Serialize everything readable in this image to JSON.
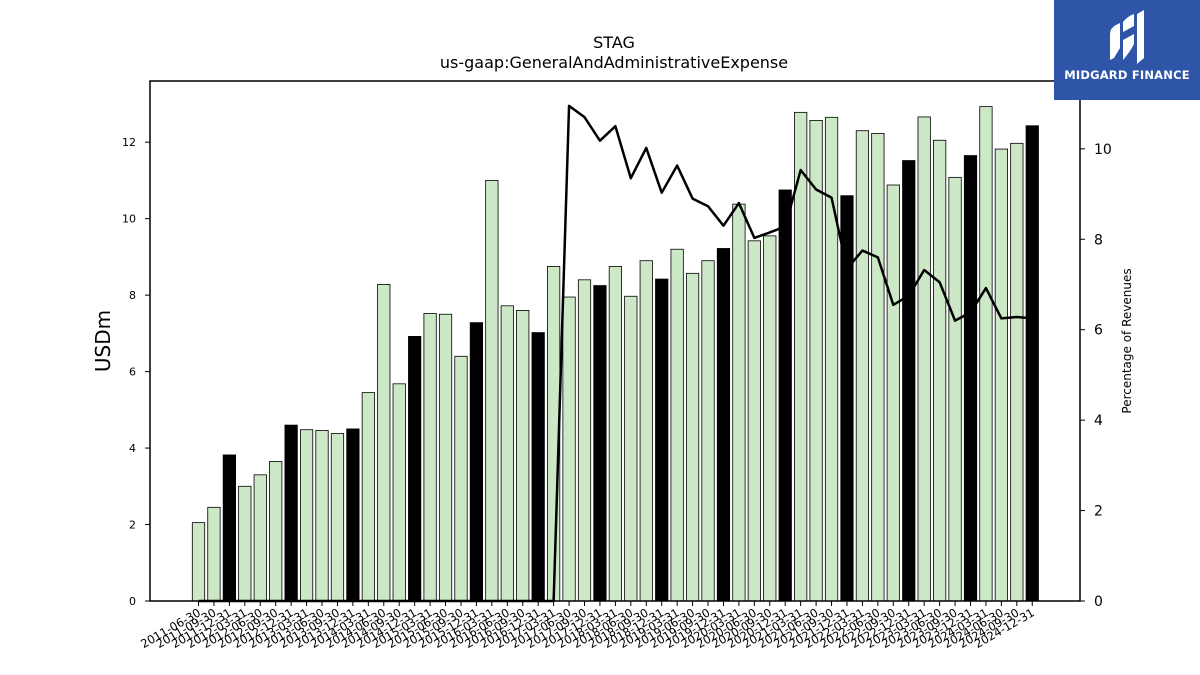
{
  "logo": {
    "text": "MIDGARD FINANCE",
    "background": "#2e55a8"
  },
  "chart_data": {
    "type": "bar",
    "title": "STAG",
    "subtitle": "us-gaap:GeneralAndAdministrativeExpense",
    "ylabel": "USDm",
    "y2label": "Percentage of Revenues",
    "ylim": [
      0,
      13.6
    ],
    "y2lim": [
      0,
      11.5
    ],
    "yticks": [
      0,
      2,
      4,
      6,
      8,
      10,
      12
    ],
    "y2ticks": [
      0,
      2,
      4,
      6,
      8,
      10
    ],
    "colors": {
      "quarter_bar": "#cde8c6",
      "annual_bar": "#000000",
      "line": "#000000"
    },
    "categories": [
      "2011-06-30",
      "2011-09-30",
      "2011-12-31",
      "2012-03-31",
      "2012-06-30",
      "2012-09-30",
      "2012-12-31",
      "2013-03-31",
      "2013-06-30",
      "2013-09-30",
      "2013-12-31",
      "2014-03-31",
      "2014-06-30",
      "2014-09-30",
      "2014-12-31",
      "2015-03-31",
      "2015-06-30",
      "2015-09-30",
      "2015-12-31",
      "2016-03-31",
      "2016-06-30",
      "2016-09-30",
      "2016-12-31",
      "2017-03-31",
      "2017-06-30",
      "2017-09-30",
      "2017-12-31",
      "2018-03-31",
      "2018-06-30",
      "2018-09-30",
      "2018-12-31",
      "2019-03-31",
      "2019-06-30",
      "2019-09-30",
      "2019-12-31",
      "2020-03-31",
      "2020-06-30",
      "2020-09-30",
      "2020-12-31",
      "2021-03-31",
      "2021-06-30",
      "2021-09-30",
      "2021-12-31",
      "2022-03-31",
      "2022-06-30",
      "2022-09-30",
      "2022-12-31",
      "2023-03-31",
      "2023-06-30",
      "2023-09-30",
      "2023-12-31",
      "2024-03-31",
      "2024-06-30",
      "2024-09-30",
      "2024-12-31"
    ],
    "series": [
      {
        "values": [
          2.05,
          2.45,
          3.82,
          3.0,
          3.3,
          3.65,
          4.6,
          4.48,
          4.46,
          4.38,
          4.5,
          5.45,
          8.28,
          5.68,
          6.92,
          7.52,
          7.5,
          6.4,
          7.28,
          11.0,
          7.72,
          7.6,
          7.02,
          8.75,
          7.95,
          8.4,
          8.25,
          8.75,
          7.97,
          8.9,
          8.42,
          9.2,
          8.57,
          8.9,
          9.22,
          10.38,
          9.42,
          9.55,
          10.75,
          12.78,
          12.57,
          12.65,
          10.6,
          12.3,
          12.23,
          10.88,
          11.52,
          12.66,
          12.05,
          11.08,
          11.65,
          12.93,
          11.82,
          11.97,
          12.43
        ],
        "annual": [
          false,
          false,
          true,
          false,
          false,
          false,
          true,
          false,
          false,
          false,
          true,
          false,
          false,
          false,
          true,
          false,
          false,
          false,
          true,
          false,
          false,
          false,
          true,
          false,
          false,
          false,
          true,
          false,
          false,
          false,
          true,
          false,
          false,
          false,
          true,
          false,
          false,
          false,
          true,
          false,
          false,
          false,
          true,
          false,
          false,
          false,
          true,
          false,
          false,
          false,
          true,
          false,
          false,
          false,
          true
        ]
      },
      {
        "values": [
          0,
          0,
          0,
          0,
          0,
          0,
          0,
          0,
          0,
          0,
          0,
          0,
          0,
          0,
          0,
          0,
          0,
          0,
          0,
          0,
          0,
          0,
          0,
          0,
          10.95,
          10.7,
          10.18,
          10.5,
          9.35,
          10.02,
          9.03,
          9.63,
          8.9,
          8.73,
          8.3,
          8.8,
          8.03,
          8.15,
          8.28,
          9.53,
          9.1,
          8.92,
          7.35,
          7.75,
          7.6,
          6.55,
          6.75,
          7.32,
          7.05,
          6.2,
          6.38,
          6.92,
          6.25,
          6.28,
          6.25
        ]
      }
    ]
  }
}
